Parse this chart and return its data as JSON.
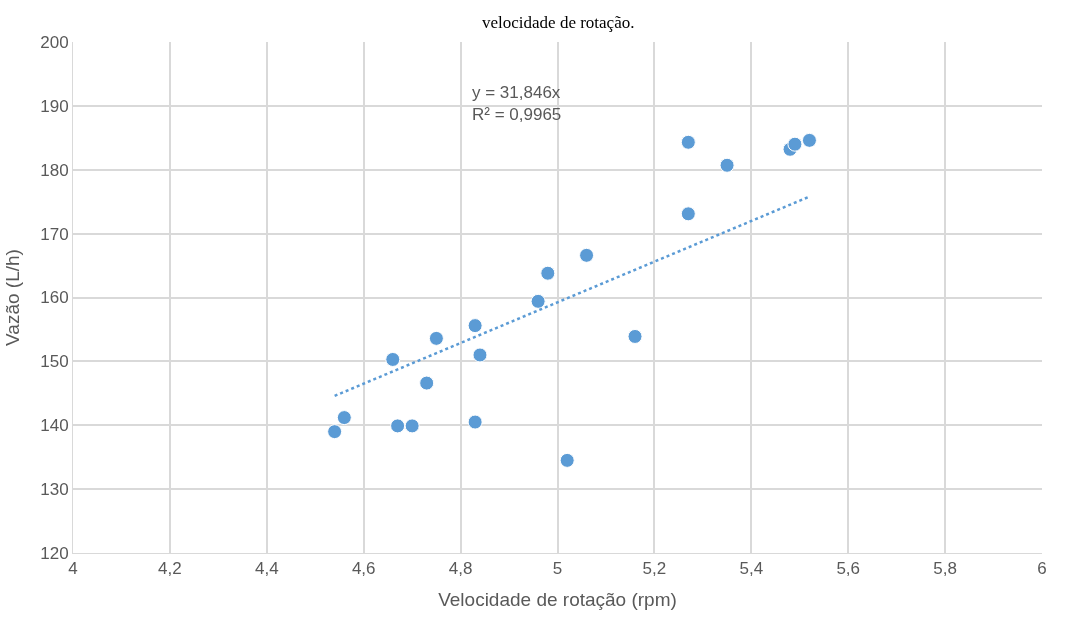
{
  "chart_data": {
    "type": "scatter",
    "xlabel": "Velocidade de rotação (rpm)",
    "ylabel": "Vazão (L/h)",
    "annotations": [
      "velocidade de rotação.",
      "y = 31,846x\nR² = 0,9965"
    ],
    "series": [
      {
        "color": "#5b9bd5",
        "marker": "circle",
        "x": [
          4.54,
          4.56,
          4.66,
          4.67,
          4.7,
          4.73,
          4.75,
          4.83,
          4.83,
          4.84,
          4.96,
          4.98,
          5.02,
          5.06,
          5.16,
          5.27,
          5.27,
          5.35,
          5.48,
          5.49,
          5.52
        ],
        "values": [
          139.0,
          141.2,
          150.3,
          139.9,
          139.9,
          146.6,
          153.6,
          140.5,
          155.6,
          151.0,
          159.4,
          163.8,
          134.5,
          166.6,
          153.9,
          184.3,
          173.1,
          180.7,
          183.2,
          184.0,
          184.6
        ]
      },
      {
        "type": "line",
        "color": "#5b9bd5",
        "line_style": "dotted",
        "marker": "none",
        "x": [
          4.54,
          5.52
        ],
        "values": [
          144.6,
          175.8
        ]
      }
    ],
    "xlim": [
      4,
      6
    ],
    "xticks": [
      4,
      {
        "value": 4.2,
        "label": "4,2"
      },
      {
        "value": 4.4,
        "label": "4,4"
      },
      {
        "value": 4.6,
        "label": "4,6"
      },
      {
        "value": 4.8,
        "label": "4,8"
      },
      5,
      {
        "value": 5.2,
        "label": "5,2"
      },
      {
        "value": 5.4,
        "label": "5,4"
      },
      {
        "value": 5.6,
        "label": "5,6"
      },
      {
        "value": 5.8,
        "label": "5,8"
      },
      6
    ],
    "ylim": [
      120,
      200
    ],
    "yticks": [
      120,
      130,
      140,
      150,
      160,
      170,
      180,
      190,
      200
    ],
    "grid": true
  }
}
